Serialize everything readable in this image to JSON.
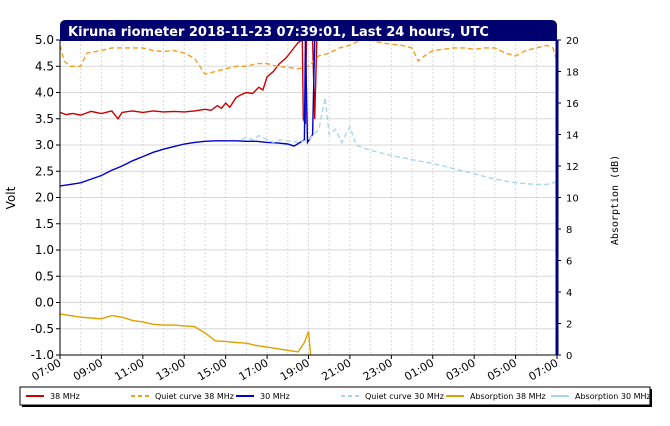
{
  "chart_data": {
    "type": "line",
    "title": "Kiruna riometer 2018-11-23 07:39:01, Last 24 hours, UTC",
    "ylabel": "Volt",
    "y2label": "Absorption (dB)",
    "ylim": [
      -1.0,
      5.0
    ],
    "y2lim": [
      0,
      20
    ],
    "xlim": [
      0,
      24
    ],
    "grid": true,
    "legend_placement": "bottom",
    "x_ticks": [
      "07:00",
      "09:00",
      "11:00",
      "13:00",
      "15:00",
      "17:00",
      "19:00",
      "21:00",
      "23:00",
      "01:00",
      "03:00",
      "05:00",
      "07:00"
    ],
    "y_ticks": [
      "5.0",
      "4.5",
      "4.0",
      "3.5",
      "3.0",
      "2.5",
      "2.0",
      "1.5",
      "1.0",
      "0.5",
      "0.0",
      "-0.5",
      "-1.0"
    ],
    "y2_ticks": [
      "20",
      "18",
      "16",
      "14",
      "12",
      "10",
      "8",
      "6",
      "4",
      "2",
      "0"
    ],
    "series": [
      {
        "name": "38 MHz",
        "axis": "left",
        "color": "#cc0000",
        "dash": "solid",
        "points": [
          [
            0,
            3.62
          ],
          [
            0.3,
            3.58
          ],
          [
            0.6,
            3.6
          ],
          [
            1,
            3.57
          ],
          [
            1.5,
            3.64
          ],
          [
            2,
            3.6
          ],
          [
            2.5,
            3.65
          ],
          [
            2.8,
            3.5
          ],
          [
            3,
            3.62
          ],
          [
            3.5,
            3.65
          ],
          [
            4,
            3.62
          ],
          [
            4.5,
            3.65
          ],
          [
            5,
            3.63
          ],
          [
            5.5,
            3.64
          ],
          [
            6,
            3.63
          ],
          [
            6.5,
            3.65
          ],
          [
            7,
            3.68
          ],
          [
            7.3,
            3.66
          ],
          [
            7.6,
            3.75
          ],
          [
            7.8,
            3.7
          ],
          [
            8,
            3.8
          ],
          [
            8.2,
            3.72
          ],
          [
            8.5,
            3.9
          ],
          [
            8.7,
            3.95
          ],
          [
            9,
            4.0
          ],
          [
            9.3,
            3.98
          ],
          [
            9.6,
            4.1
          ],
          [
            9.8,
            4.05
          ],
          [
            10,
            4.3
          ],
          [
            10.3,
            4.4
          ],
          [
            10.6,
            4.55
          ],
          [
            10.9,
            4.65
          ],
          [
            11.2,
            4.8
          ],
          [
            11.5,
            4.95
          ],
          [
            11.7,
            5.0
          ],
          [
            11.75,
            3.5
          ],
          [
            11.85,
            3.4
          ],
          [
            11.9,
            5.0
          ],
          [
            12.2,
            5.0
          ],
          [
            12.3,
            3.5
          ],
          [
            12.4,
            5.0
          ]
        ]
      },
      {
        "name": "Quiet curve 38 MHz",
        "axis": "left",
        "color": "#f0a020",
        "dash": "dashed",
        "points": [
          [
            0,
            4.9
          ],
          [
            0.2,
            4.6
          ],
          [
            0.5,
            4.5
          ],
          [
            1,
            4.5
          ],
          [
            1.3,
            4.75
          ],
          [
            2,
            4.8
          ],
          [
            2.5,
            4.85
          ],
          [
            3,
            4.85
          ],
          [
            3.5,
            4.85
          ],
          [
            4,
            4.85
          ],
          [
            4.5,
            4.8
          ],
          [
            5,
            4.78
          ],
          [
            5.5,
            4.8
          ],
          [
            6,
            4.75
          ],
          [
            6.5,
            4.65
          ],
          [
            7,
            4.35
          ],
          [
            7.5,
            4.4
          ],
          [
            8,
            4.45
          ],
          [
            8.5,
            4.5
          ],
          [
            9,
            4.5
          ],
          [
            9.5,
            4.55
          ],
          [
            10,
            4.55
          ],
          [
            10.5,
            4.5
          ],
          [
            11,
            4.48
          ],
          [
            11.5,
            4.45
          ],
          [
            12,
            4.5
          ],
          [
            12.5,
            4.7
          ],
          [
            13,
            4.75
          ],
          [
            13.5,
            4.85
          ],
          [
            14,
            4.9
          ],
          [
            14.5,
            5.0
          ],
          [
            15,
            5.0
          ],
          [
            15.5,
            4.95
          ],
          [
            16,
            4.92
          ],
          [
            16.5,
            4.9
          ],
          [
            17,
            4.85
          ],
          [
            17.3,
            4.6
          ],
          [
            17.6,
            4.7
          ],
          [
            18,
            4.8
          ],
          [
            18.5,
            4.82
          ],
          [
            19,
            4.85
          ],
          [
            19.5,
            4.85
          ],
          [
            20,
            4.82
          ],
          [
            20.5,
            4.85
          ],
          [
            21,
            4.85
          ],
          [
            21.5,
            4.75
          ],
          [
            22,
            4.7
          ],
          [
            22.5,
            4.8
          ],
          [
            23,
            4.85
          ],
          [
            23.5,
            4.9
          ],
          [
            23.8,
            4.85
          ],
          [
            24,
            4.6
          ]
        ]
      },
      {
        "name": "30 MHz",
        "axis": "left",
        "color": "#0000cc",
        "dash": "solid",
        "points": [
          [
            0,
            2.22
          ],
          [
            0.5,
            2.25
          ],
          [
            1,
            2.28
          ],
          [
            1.5,
            2.35
          ],
          [
            2,
            2.42
          ],
          [
            2.5,
            2.52
          ],
          [
            3,
            2.6
          ],
          [
            3.5,
            2.7
          ],
          [
            4,
            2.78
          ],
          [
            4.5,
            2.86
          ],
          [
            5,
            2.92
          ],
          [
            5.5,
            2.97
          ],
          [
            6,
            3.02
          ],
          [
            6.5,
            3.05
          ],
          [
            7,
            3.07
          ],
          [
            7.5,
            3.08
          ],
          [
            8,
            3.08
          ],
          [
            8.5,
            3.08
          ],
          [
            9,
            3.07
          ],
          [
            9.5,
            3.07
          ],
          [
            10,
            3.05
          ],
          [
            10.5,
            3.04
          ],
          [
            11,
            3.02
          ],
          [
            11.3,
            2.98
          ],
          [
            11.6,
            3.05
          ],
          [
            11.8,
            3.1
          ],
          [
            11.85,
            5.0
          ],
          [
            11.95,
            3.05
          ],
          [
            12.2,
            3.2
          ],
          [
            12.3,
            5.0
          ]
        ]
      },
      {
        "name": "Quiet curve 30 MHz",
        "axis": "left",
        "color": "#a8d8e8",
        "dash": "dashed",
        "points": [
          [
            8.8,
            3.1
          ],
          [
            9,
            3.15
          ],
          [
            9.3,
            3.1
          ],
          [
            9.6,
            3.18
          ],
          [
            10,
            3.1
          ],
          [
            10.3,
            3.05
          ],
          [
            10.6,
            3.1
          ],
          [
            11,
            3.08
          ],
          [
            11.5,
            3.05
          ],
          [
            12,
            3.1
          ],
          [
            12.5,
            3.3
          ],
          [
            12.8,
            3.9
          ],
          [
            13,
            3.2
          ],
          [
            13.3,
            3.3
          ],
          [
            13.6,
            3.05
          ],
          [
            14,
            3.35
          ],
          [
            14.3,
            3.0
          ],
          [
            14.6,
            2.95
          ],
          [
            15,
            2.9
          ],
          [
            15.5,
            2.85
          ],
          [
            16,
            2.8
          ],
          [
            17,
            2.72
          ],
          [
            18,
            2.65
          ],
          [
            19,
            2.55
          ],
          [
            20,
            2.45
          ],
          [
            21,
            2.35
          ],
          [
            22,
            2.28
          ],
          [
            23,
            2.25
          ],
          [
            23.5,
            2.25
          ],
          [
            24,
            2.3
          ]
        ]
      },
      {
        "name": "Absorption 38 MHz",
        "axis": "right",
        "color": "#e0a000",
        "dash": "solid",
        "points": [
          [
            0,
            2.6
          ],
          [
            0.5,
            2.5
          ],
          [
            1,
            2.4
          ],
          [
            1.5,
            2.35
          ],
          [
            2,
            2.3
          ],
          [
            2.5,
            2.5
          ],
          [
            3,
            2.4
          ],
          [
            3.5,
            2.2
          ],
          [
            4,
            2.1
          ],
          [
            4.5,
            1.95
          ],
          [
            5,
            1.9
          ],
          [
            5.5,
            1.9
          ],
          [
            6,
            1.85
          ],
          [
            6.5,
            1.8
          ],
          [
            7,
            1.4
          ],
          [
            7.5,
            0.9
          ],
          [
            8,
            0.85
          ],
          [
            8.5,
            0.8
          ],
          [
            9,
            0.75
          ],
          [
            9.5,
            0.6
          ],
          [
            10,
            0.5
          ],
          [
            10.5,
            0.4
          ],
          [
            11,
            0.3
          ],
          [
            11.5,
            0.2
          ],
          [
            11.8,
            0.8
          ],
          [
            12,
            1.5
          ],
          [
            12.1,
            0.0
          ]
        ]
      },
      {
        "name": "Absorption 30 MHz",
        "axis": "right",
        "color": "#a8d8e8",
        "dash": "solid",
        "points": []
      }
    ]
  }
}
